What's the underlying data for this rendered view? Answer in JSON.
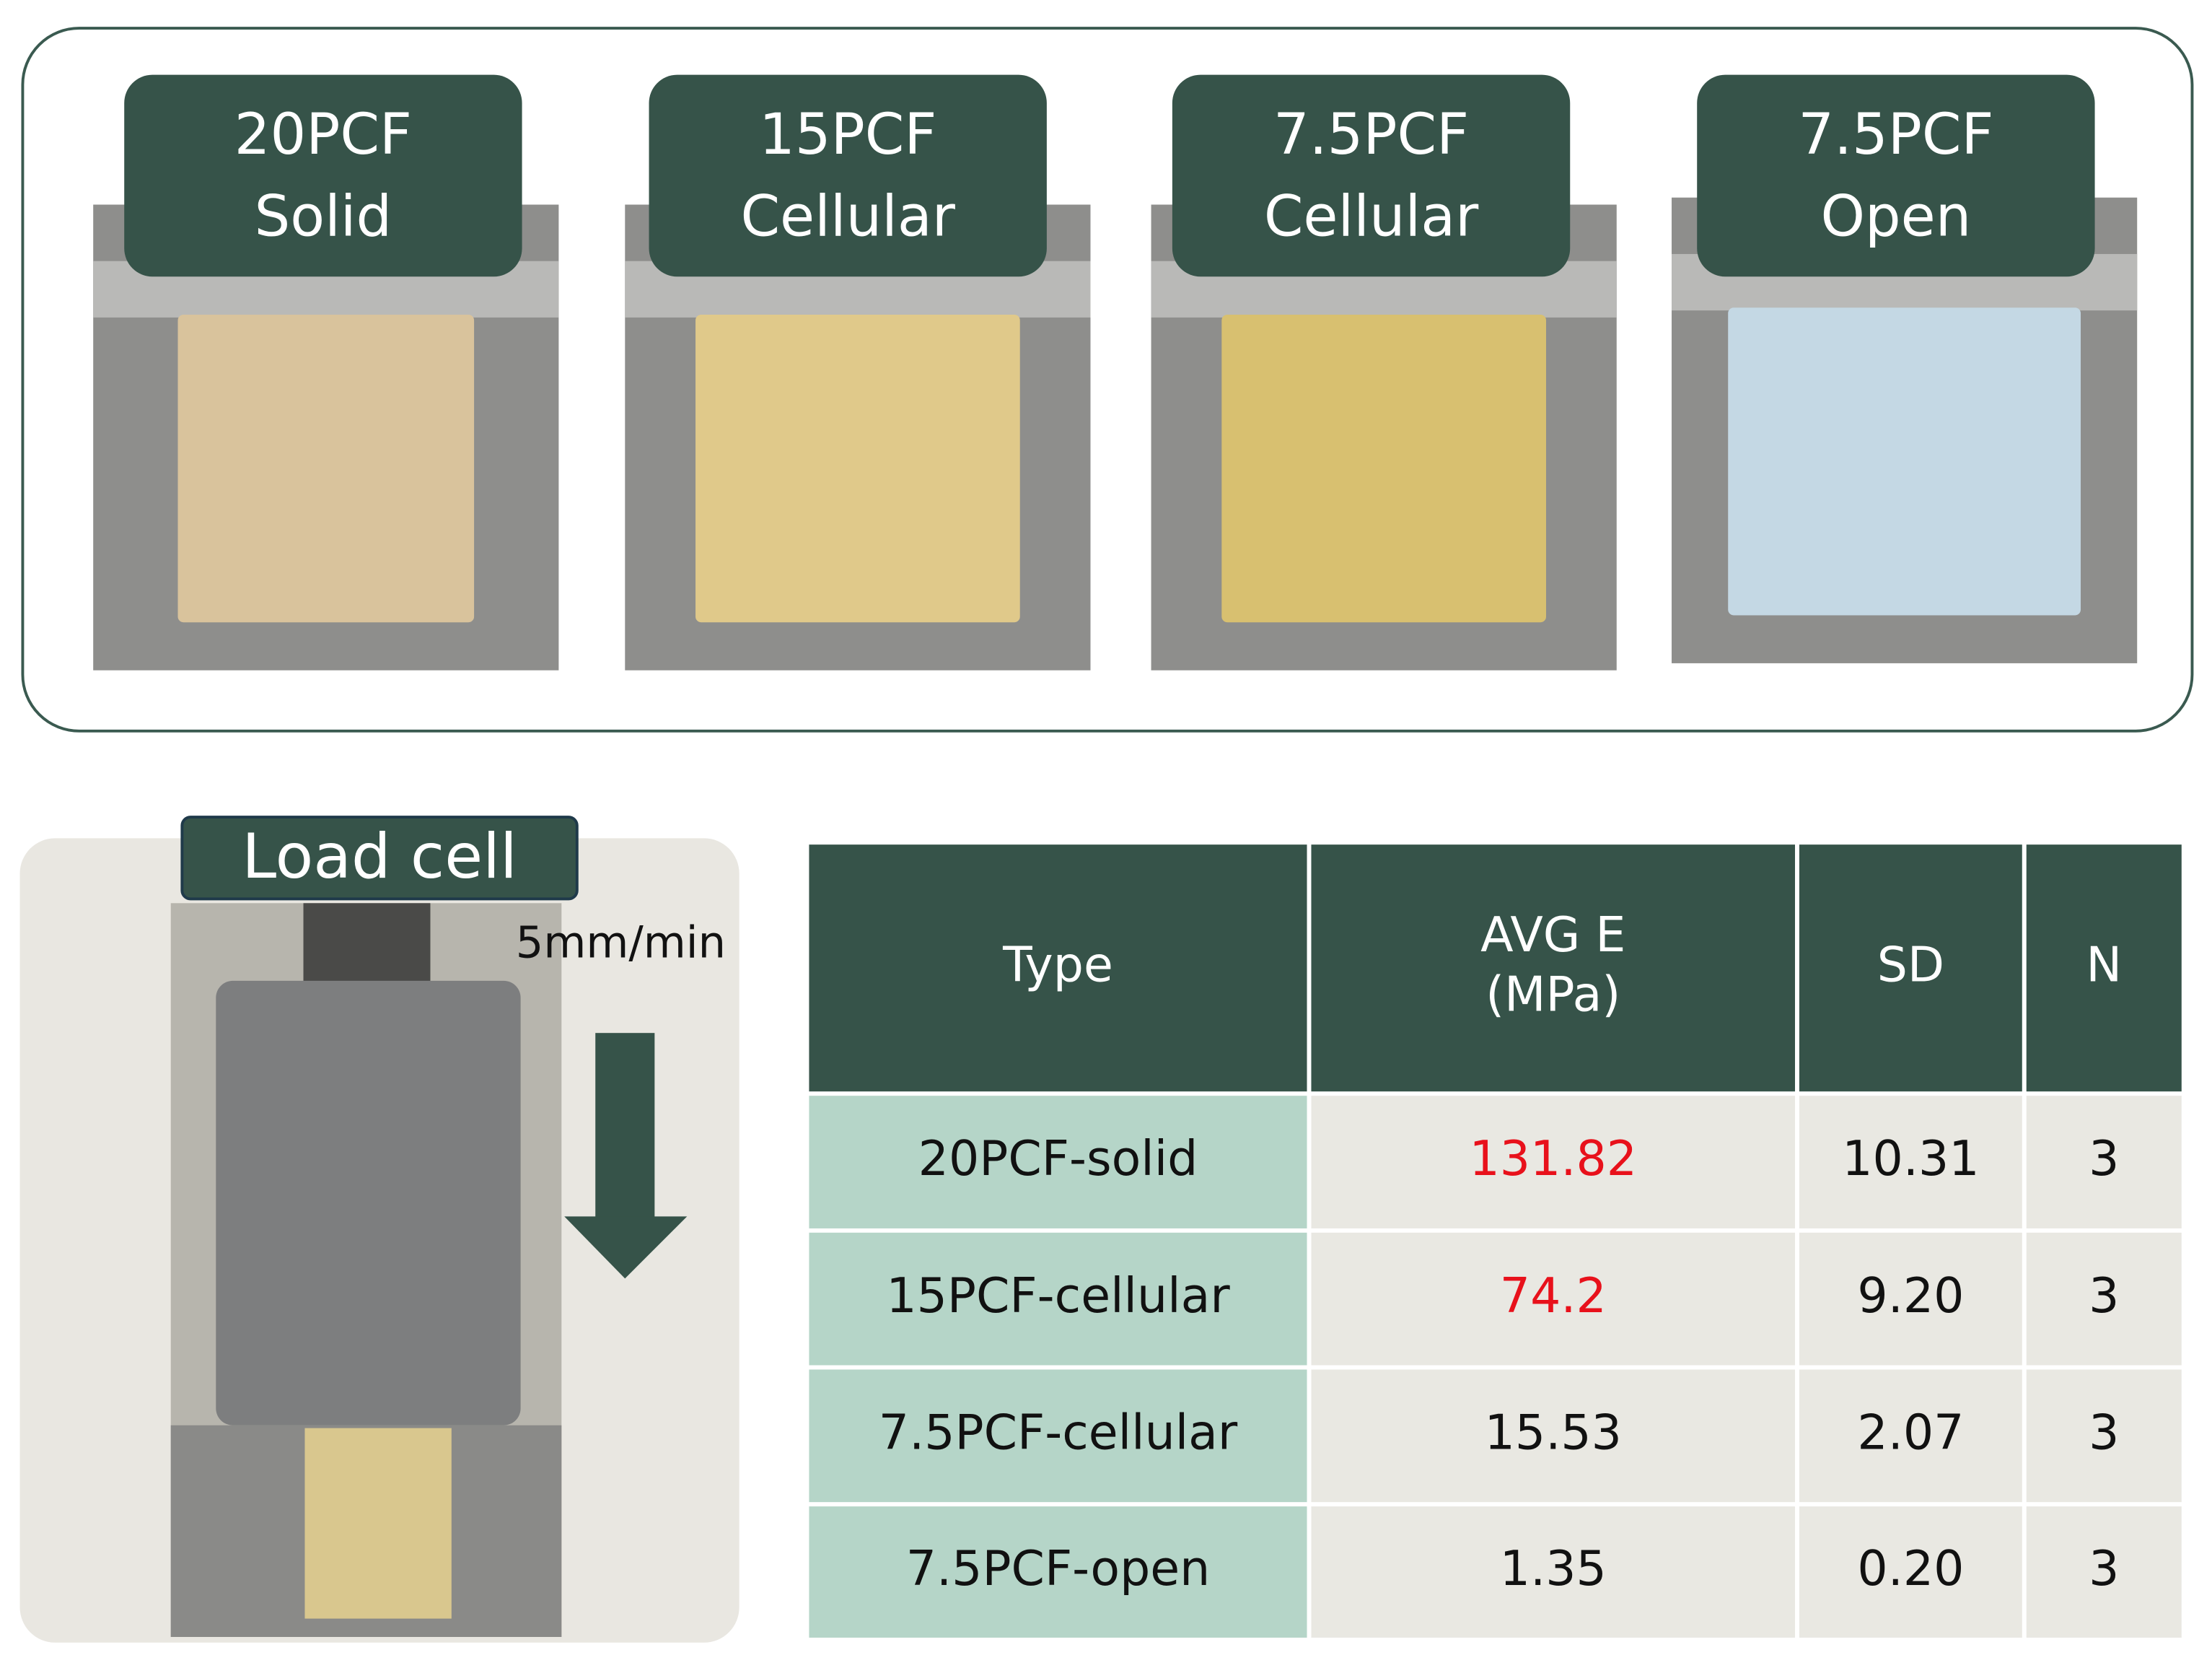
{
  "panels": [
    {
      "label_lines": [
        "20PCF",
        "Solid"
      ]
    },
    {
      "label_lines": [
        "15PCF",
        "Cellular"
      ]
    },
    {
      "label_lines": [
        "7.5PCF",
        "Cellular"
      ]
    },
    {
      "label_lines": [
        "7.5PCF",
        "Open"
      ]
    }
  ],
  "setup": {
    "label": "Load cell",
    "speed": "5mm/min"
  },
  "table": {
    "header": [
      [
        "Type"
      ],
      [
        "AVG E",
        "(MPa)"
      ],
      [
        "SD"
      ],
      [
        "N"
      ]
    ],
    "rows": [
      [
        "20PCF-solid",
        "131.82",
        "10.31",
        "3"
      ],
      [
        "15PCF-cellular",
        "74.2",
        "9.20",
        "3"
      ],
      [
        "7.5PCF-cellular",
        "15.53",
        "2.07",
        "3"
      ],
      [
        "7.5PCF-open",
        "1.35",
        "0.20",
        "3"
      ]
    ],
    "highlight": {
      "color": "#e8111b",
      "cells": [
        [
          0,
          1
        ],
        [
          1,
          1
        ]
      ]
    }
  }
}
